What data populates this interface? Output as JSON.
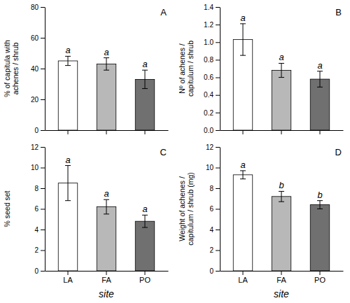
{
  "chart_data": [
    {
      "type": "bar",
      "title": "A",
      "ylabel": "% of capitula with\nachenes / shrub",
      "categories": [
        null,
        null,
        null
      ],
      "values": [
        45,
        43,
        33
      ],
      "errors": [
        3,
        4,
        6
      ],
      "annotations": [
        "a",
        "a",
        "a"
      ],
      "colors": [
        "#ffffff",
        "#b8b8b8",
        "#707070"
      ],
      "ylim": [
        0,
        80
      ],
      "yticks": [
        0,
        20,
        40,
        60,
        80
      ],
      "tick_labels": "y"
    },
    {
      "type": "bar",
      "title": "B",
      "ylabel": "Nº of achenes /\ncapitulum / shrub",
      "categories": [
        null,
        null,
        null
      ],
      "values": [
        1.03,
        0.68,
        0.58
      ],
      "errors": [
        0.18,
        0.08,
        0.09
      ],
      "annotations": [
        "a",
        "a",
        "a"
      ],
      "colors": [
        "#ffffff",
        "#b8b8b8",
        "#707070"
      ],
      "ylim": [
        0.0,
        1.4
      ],
      "yticks": [
        {
          "value": 0.0,
          "label": "0.0"
        },
        0.2,
        0.4,
        0.6,
        0.8,
        {
          "value": 1.0,
          "label": "1.0"
        },
        1.2,
        1.4
      ],
      "tick_labels": "y"
    },
    {
      "type": "bar",
      "title": "C",
      "ylabel": "% seed set",
      "xlabel": "site",
      "categories": [
        "LA",
        "FA",
        "PO"
      ],
      "values": [
        8.5,
        6.2,
        4.8
      ],
      "errors": [
        1.7,
        0.7,
        0.6
      ],
      "annotations": [
        "a",
        "a",
        "a"
      ],
      "colors": [
        "#ffffff",
        "#b8b8b8",
        "#707070"
      ],
      "ylim": [
        0,
        12
      ],
      "yticks": [
        0,
        2,
        4,
        6,
        8,
        10,
        12
      ]
    },
    {
      "type": "bar",
      "title": "D",
      "ylabel": "Weight of achenes /\ncapitulum / shrub (mg)",
      "xlabel": "site",
      "categories": [
        "LA",
        "FA",
        "PO"
      ],
      "values": [
        9.3,
        7.2,
        6.4
      ],
      "errors": [
        0.4,
        0.5,
        0.4
      ],
      "annotations": [
        "a",
        "b",
        "b"
      ],
      "colors": [
        "#ffffff",
        "#b8b8b8",
        "#707070"
      ],
      "ylim": [
        0,
        12
      ],
      "yticks": [
        0,
        2,
        4,
        6,
        8,
        10,
        12
      ]
    }
  ]
}
